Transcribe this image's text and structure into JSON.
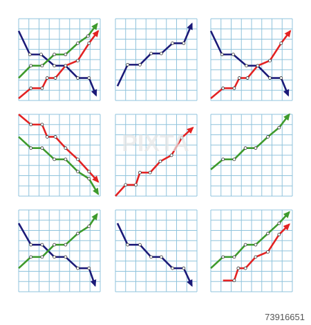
{
  "chart_data": [
    {
      "type": "line",
      "xlim": [
        0,
        8
      ],
      "ylim": [
        0,
        8
      ],
      "xticks": [
        0,
        1,
        2,
        3,
        4,
        5,
        6,
        7,
        8
      ],
      "yticks": [
        0,
        1,
        2,
        3,
        4,
        5,
        6,
        7,
        8
      ],
      "grid": true,
      "series": [
        {
          "color": "#1b1a78",
          "x": [
            0,
            1.1,
            2.2,
            3.5,
            4.6,
            5.8,
            6.9,
            7.6
          ],
          "values": [
            6.8,
            4.5,
            4.5,
            3.4,
            3.4,
            2.2,
            2.2,
            0.5
          ]
        },
        {
          "color": "#3d9a2c",
          "x": [
            0,
            1.2,
            2.3,
            3.5,
            4.6,
            5.8,
            6.8,
            7.7
          ],
          "values": [
            2.2,
            3.4,
            3.4,
            4.5,
            4.5,
            5.6,
            6.3,
            7.5
          ]
        },
        {
          "color": "#e32222",
          "x": [
            0,
            1.2,
            2.3,
            2.8,
            3.6,
            4.6,
            5.8,
            6.9,
            7.8
          ],
          "values": [
            0.2,
            1.2,
            1.2,
            2.2,
            2.2,
            3.4,
            3.9,
            5.6,
            6.8
          ]
        }
      ]
    },
    {
      "type": "line",
      "xlim": [
        0,
        8
      ],
      "ylim": [
        0,
        8
      ],
      "xticks": [
        0,
        1,
        2,
        3,
        4,
        5,
        6,
        7,
        8
      ],
      "yticks": [
        0,
        1,
        2,
        3,
        4,
        5,
        6,
        7,
        8
      ],
      "grid": true,
      "series": [
        {
          "color": "#1b1a78",
          "x": [
            0.2,
            1.2,
            2.4,
            3.5,
            4.5,
            5.6,
            6.7,
            7.5
          ],
          "values": [
            1.4,
            3.5,
            3.5,
            4.6,
            4.6,
            5.6,
            5.6,
            7.5
          ]
        }
      ]
    },
    {
      "type": "line",
      "xlim": [
        0,
        8
      ],
      "ylim": [
        0,
        8
      ],
      "xticks": [
        0,
        1,
        2,
        3,
        4,
        5,
        6,
        7,
        8
      ],
      "yticks": [
        0,
        1,
        2,
        3,
        4,
        5,
        6,
        7,
        8
      ],
      "grid": true,
      "series": [
        {
          "color": "#1b1a78",
          "x": [
            0,
            1.1,
            2.2,
            3.5,
            4.6,
            5.8,
            6.9,
            7.6
          ],
          "values": [
            6.8,
            4.5,
            4.5,
            3.4,
            3.4,
            2.2,
            2.2,
            0.5
          ]
        },
        {
          "color": "#e32222",
          "x": [
            0,
            1.2,
            2.3,
            2.8,
            3.6,
            4.6,
            5.8,
            6.9,
            7.8
          ],
          "values": [
            0.2,
            1.2,
            1.2,
            2.2,
            2.2,
            3.4,
            3.9,
            5.6,
            6.8
          ]
        }
      ]
    },
    {
      "type": "line",
      "xlim": [
        0,
        8
      ],
      "ylim": [
        0,
        8
      ],
      "xticks": [
        0,
        1,
        2,
        3,
        4,
        5,
        6,
        7,
        8
      ],
      "yticks": [
        0,
        1,
        2,
        3,
        4,
        5,
        6,
        7,
        8
      ],
      "grid": true,
      "series": [
        {
          "color": "#e32222",
          "x": [
            0,
            1.2,
            2.3,
            2.8,
            3.6,
            4.6,
            5.8,
            6.9,
            7.8
          ],
          "values": [
            8,
            7,
            7,
            5.8,
            5.8,
            4.7,
            3.6,
            2.4,
            1.4
          ]
        },
        {
          "color": "#3d9a2c",
          "x": [
            0,
            1.2,
            2.3,
            3.5,
            4.6,
            5.8,
            6.9,
            7.8
          ],
          "values": [
            5.8,
            4.7,
            4.7,
            3.6,
            3.6,
            2.4,
            1.7,
            0.2
          ]
        }
      ]
    },
    {
      "type": "line",
      "xlim": [
        0,
        8
      ],
      "ylim": [
        0,
        8
      ],
      "xticks": [
        0,
        1,
        2,
        3,
        4,
        5,
        6,
        7,
        8
      ],
      "yticks": [
        0,
        1,
        2,
        3,
        4,
        5,
        6,
        7,
        8
      ],
      "grid": true,
      "series": [
        {
          "color": "#e32222",
          "x": [
            0,
            1,
            2,
            2.4,
            3.4,
            4.4,
            5.5,
            6.5,
            7.6
          ],
          "values": [
            0,
            1.1,
            1.1,
            2.3,
            2.3,
            3.4,
            4,
            5.7,
            6.7
          ]
        }
      ]
    },
    {
      "type": "line",
      "xlim": [
        0,
        8
      ],
      "ylim": [
        0,
        8
      ],
      "xticks": [
        0,
        1,
        2,
        3,
        4,
        5,
        6,
        7,
        8
      ],
      "yticks": [
        0,
        1,
        2,
        3,
        4,
        5,
        6,
        7,
        8
      ],
      "grid": true,
      "series": [
        {
          "color": "#3d9a2c",
          "x": [
            0,
            1.2,
            2.3,
            3.4,
            4.4,
            5.6,
            6.7,
            7.7
          ],
          "values": [
            2.6,
            3.6,
            3.6,
            4.7,
            4.7,
            5.8,
            6.7,
            8
          ]
        }
      ]
    },
    {
      "type": "line",
      "xlim": [
        0,
        8
      ],
      "ylim": [
        0,
        8
      ],
      "xticks": [
        0,
        1,
        2,
        3,
        4,
        5,
        6,
        7,
        8
      ],
      "yticks": [
        0,
        1,
        2,
        3,
        4,
        5,
        6,
        7,
        8
      ],
      "grid": true,
      "series": [
        {
          "color": "#1b1a78",
          "x": [
            0,
            1.2,
            2.3,
            3.5,
            4.6,
            5.8,
            6.9,
            7.5
          ],
          "values": [
            6.7,
            4.6,
            4.6,
            3.4,
            3.4,
            2.3,
            2.3,
            0.6
          ]
        },
        {
          "color": "#3d9a2c",
          "x": [
            0,
            1.2,
            2.3,
            3.5,
            4.6,
            5.8,
            6.9,
            7.7
          ],
          "values": [
            2.3,
            3.4,
            3.4,
            4.6,
            4.6,
            5.7,
            6.4,
            7.6
          ]
        }
      ]
    },
    {
      "type": "line",
      "xlim": [
        0,
        8
      ],
      "ylim": [
        0,
        8
      ],
      "xticks": [
        0,
        1,
        2,
        3,
        4,
        5,
        6,
        7,
        8
      ],
      "yticks": [
        0,
        1,
        2,
        3,
        4,
        5,
        6,
        7,
        8
      ],
      "grid": true,
      "series": [
        {
          "color": "#1b1a78",
          "x": [
            0.2,
            1.2,
            2.4,
            3.5,
            4.5,
            5.6,
            6.7,
            7.5
          ],
          "values": [
            6.7,
            4.6,
            4.6,
            3.4,
            3.4,
            2.3,
            2.3,
            0.6
          ]
        }
      ]
    },
    {
      "type": "line",
      "xlim": [
        0,
        8
      ],
      "ylim": [
        0,
        8
      ],
      "xticks": [
        0,
        1,
        2,
        3,
        4,
        5,
        6,
        7,
        8
      ],
      "yticks": [
        0,
        1,
        2,
        3,
        4,
        5,
        6,
        7,
        8
      ],
      "grid": true,
      "series": [
        {
          "color": "#3d9a2c",
          "x": [
            0,
            1.2,
            2.3,
            3.4,
            4.4,
            5.6,
            6.7,
            7.7
          ],
          "values": [
            2.3,
            3.4,
            3.4,
            4.6,
            4.6,
            5.7,
            6.7,
            7.8
          ]
        },
        {
          "color": "#e32222",
          "x": [
            1.2,
            2.3,
            2.7,
            3.4,
            4.4,
            5.6,
            6.7,
            7.7
          ],
          "values": [
            1.1,
            1.1,
            2.3,
            2.3,
            3.4,
            3.9,
            5.6,
            6.6
          ]
        }
      ]
    }
  ],
  "watermark": "PIXTA",
  "image_id": "73916651"
}
